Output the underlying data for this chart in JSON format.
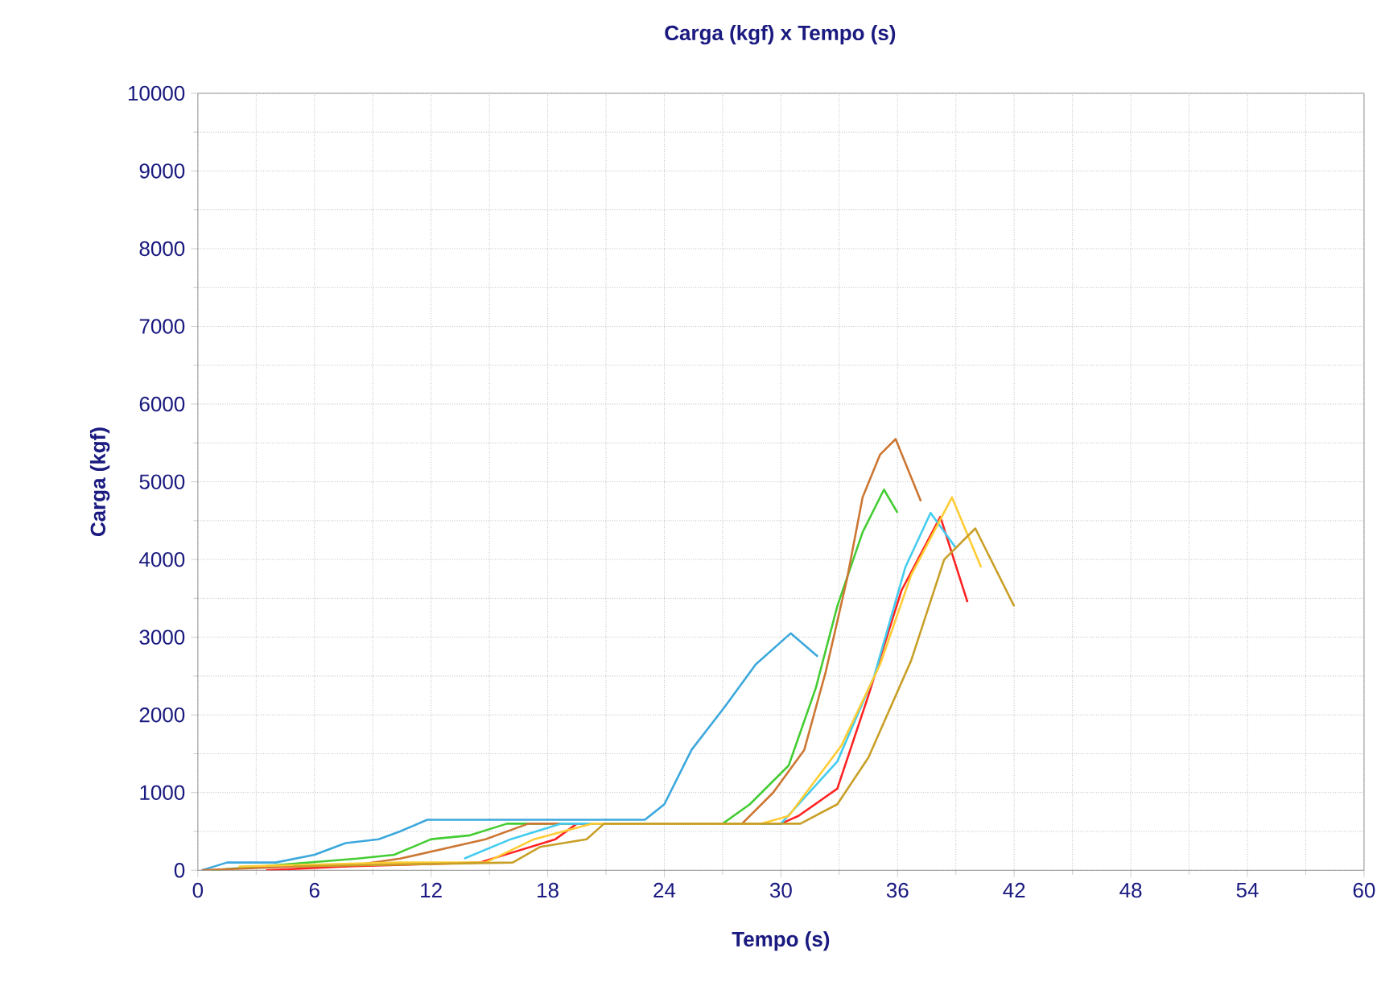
{
  "chart_data": {
    "type": "line",
    "title": "Carga (kgf) x Tempo (s)",
    "xlabel": "Tempo (s)",
    "ylabel": "Carga (kgf)",
    "xlim": [
      0,
      60
    ],
    "xticks": [
      0,
      6,
      12,
      18,
      24,
      30,
      36,
      42,
      48,
      54,
      60
    ],
    "ylim": [
      0,
      10000
    ],
    "yticks": [
      0,
      1000,
      2000,
      3000,
      4000,
      5000,
      6000,
      7000,
      8000,
      9000,
      10000
    ],
    "grid": true,
    "marker": "none",
    "line_style": "solid",
    "series": [
      {
        "color": "#3ca8dc",
        "x": [
          0.2,
          1.5,
          4.0,
          6.0,
          7.6,
          9.3,
          10.4,
          11.8,
          23.0,
          24.0,
          25.4,
          27.1,
          28.7,
          30.5,
          31.9
        ],
        "values": [
          0,
          100,
          100,
          200,
          350,
          400,
          500,
          650,
          650,
          850,
          1550,
          2100,
          2650,
          3050,
          2750
        ]
      },
      {
        "color": "#44cc33",
        "x": [
          0.7,
          8.2,
          10.1,
          12.0,
          14.0,
          15.9,
          27.0,
          28.4,
          30.4,
          31.8,
          32.9,
          34.2,
          35.3,
          36.0
        ],
        "values": [
          0,
          150,
          200,
          400,
          450,
          600,
          600,
          850,
          1350,
          2350,
          3400,
          4350,
          4900,
          4600
        ]
      },
      {
        "color": "#cc7733",
        "x": [
          0.2,
          4.9,
          7.6,
          10.4,
          14.8,
          17.0,
          28.0,
          29.6,
          31.2,
          32.3,
          33.4,
          34.2,
          35.1,
          35.9,
          37.2
        ],
        "values": [
          0,
          50,
          50,
          150,
          400,
          600,
          600,
          1000,
          1550,
          2550,
          3750,
          4800,
          5350,
          5550,
          4750
        ]
      },
      {
        "color": "#ff2222",
        "x": [
          3.5,
          7.6,
          14.5,
          18.4,
          19.5,
          30.0,
          30.9,
          32.9,
          34.5,
          36.2,
          38.2,
          39.6
        ],
        "values": [
          0,
          50,
          100,
          400,
          600,
          600,
          700,
          1050,
          2250,
          3600,
          4550,
          3450
        ]
      },
      {
        "color": "#44ccee",
        "x": [
          13.7,
          16.1,
          18.7,
          30.0,
          32.9,
          34.8,
          36.4,
          37.7,
          39.0
        ],
        "values": [
          150,
          400,
          600,
          600,
          1400,
          2500,
          3900,
          4600,
          4150
        ]
      },
      {
        "color": "#ffcc33",
        "x": [
          2.1,
          10.4,
          14.8,
          17.3,
          20.3,
          29.0,
          30.4,
          33.1,
          35.1,
          36.7,
          38.8,
          40.3
        ],
        "values": [
          50,
          100,
          100,
          400,
          600,
          600,
          700,
          1600,
          2650,
          3800,
          4800,
          3900
        ]
      },
      {
        "color": "#c8a028",
        "x": [
          4.9,
          16.2,
          17.6,
          20.0,
          20.9,
          31.0,
          32.9,
          34.5,
          36.7,
          38.4,
          40.0,
          42.0
        ],
        "values": [
          50,
          100,
          300,
          400,
          600,
          600,
          850,
          1450,
          2700,
          4000,
          4400,
          3400
        ]
      }
    ]
  }
}
